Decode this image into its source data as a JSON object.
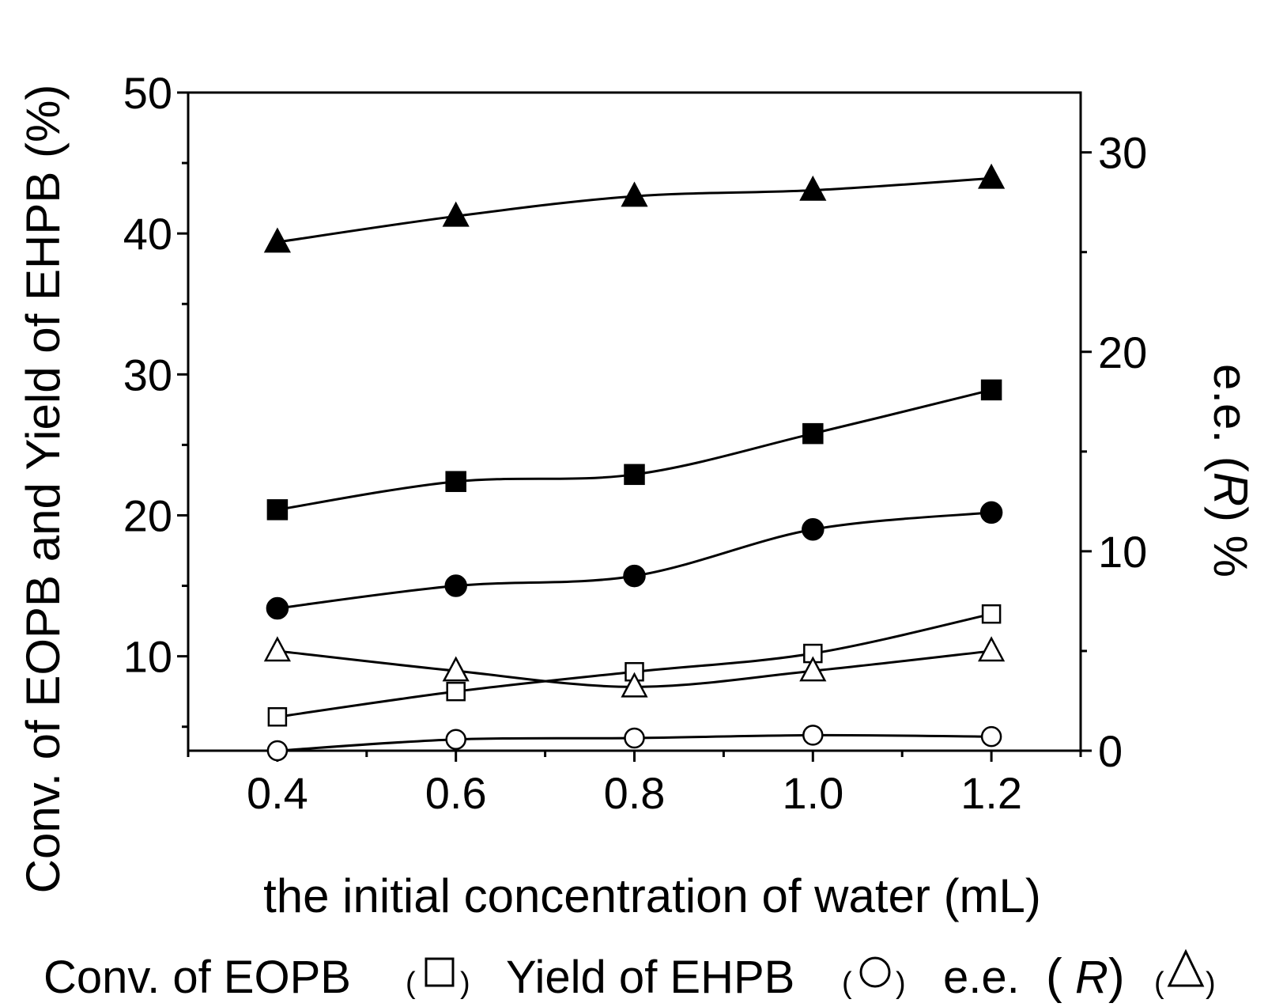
{
  "chart_data": {
    "type": "line",
    "xlabel": "the initial concentration of water (mL)",
    "ylabel_left": "Conv. of EOPB and Yield of EHPB (%)",
    "ylabel_right_prefix": "e.e. (",
    "ylabel_right_r": "R",
    "ylabel_right_suffix": ") %",
    "xlim": [
      0.3,
      1.3
    ],
    "ylim_left": [
      3.3,
      50
    ],
    "ylim_right": [
      0,
      33
    ],
    "x_ticks": [
      0.4,
      0.6,
      0.8,
      1.0,
      1.2
    ],
    "x_tick_labels": [
      "0.4",
      "0.6",
      "0.8",
      "1.0",
      "1.2"
    ],
    "y_left_ticks": [
      10,
      20,
      30,
      40,
      50
    ],
    "y_left_tick_labels": [
      "10",
      "20",
      "30",
      "40",
      "50"
    ],
    "y_right_ticks": [
      0,
      10,
      20,
      30
    ],
    "y_right_tick_labels": [
      "0",
      "10",
      "20",
      "30"
    ],
    "x": [
      0.4,
      0.6,
      0.8,
      1.0,
      1.2
    ],
    "series": [
      {
        "name": "e.e. (R) filled",
        "axis": "right",
        "marker": "triangle",
        "filled": true,
        "values": [
          25.5,
          26.8,
          27.8,
          28.1,
          28.7
        ]
      },
      {
        "name": "Conv. of EOPB filled",
        "axis": "left",
        "marker": "square",
        "filled": true,
        "values": [
          20.4,
          22.4,
          22.9,
          25.8,
          28.9
        ]
      },
      {
        "name": "Yield of EHPB filled",
        "axis": "left",
        "marker": "circle",
        "filled": true,
        "values": [
          13.4,
          15.0,
          15.7,
          19.0,
          20.2
        ]
      },
      {
        "name": "Conv. of EOPB",
        "axis": "left",
        "marker": "square",
        "filled": false,
        "values": [
          5.7,
          7.5,
          8.9,
          10.2,
          13.0
        ]
      },
      {
        "name": "Yield of EHPB",
        "axis": "left",
        "marker": "circle",
        "filled": false,
        "values": [
          3.3,
          4.1,
          4.2,
          4.4,
          4.3
        ]
      },
      {
        "name": "e.e. (R)",
        "axis": "right",
        "marker": "triangle",
        "filled": false,
        "values": [
          5.0,
          4.0,
          3.2,
          4.0,
          5.0
        ]
      }
    ],
    "legend": [
      {
        "label": "Conv. of EOPB",
        "symbol": "square"
      },
      {
        "label": "Yield of EHPB",
        "symbol": "circle"
      },
      {
        "label_prefix": "e.e.",
        "label_r": "R",
        "symbol": "triangle"
      }
    ]
  }
}
